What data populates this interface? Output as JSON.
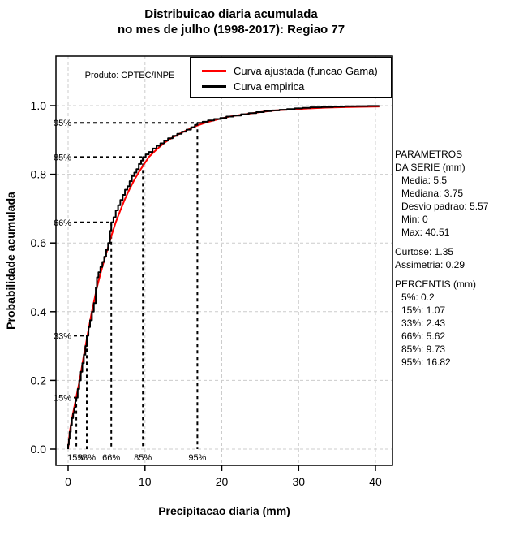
{
  "title": {
    "line1": "Distribuicao diaria acumulada",
    "line2": "no mes de julho (1998-2017): Regiao 77"
  },
  "annotations": {
    "produto": "Produto: CPTEC/INPE"
  },
  "stats_panel": {
    "header_line1": "PARAMETROS",
    "header_line2": "DA SERIE (mm)",
    "series_stats": [
      "Media: 5.5",
      "Mediana: 3.75",
      "Desvio padrao: 5.57",
      "Min: 0",
      "Max: 40.51"
    ],
    "moments": [
      "Curtose: 1.35",
      "Assimetria: 0.29"
    ],
    "percentis_header": "PERCENTIS (mm)",
    "percentis": [
      "5%: 0.2",
      "15%: 1.07",
      "33%: 2.43",
      "66%: 5.62",
      "85%: 9.73",
      "95%: 16.82"
    ]
  },
  "chart_data": {
    "type": "line",
    "title": "Distribuicao diaria acumulada no mes de julho (1998-2017): Regiao 77",
    "xlabel": "Precipitacao diaria (mm)",
    "ylabel": "Probabilidade acumulada",
    "xlim": [
      -1.5,
      42
    ],
    "ylim": [
      -0.02,
      1.04
    ],
    "x_ticks": [
      0,
      10,
      20,
      30,
      40
    ],
    "y_ticks": [
      0.0,
      0.2,
      0.4,
      0.6,
      0.8,
      1.0
    ],
    "grid": true,
    "legend_position": "top-inside",
    "series": [
      {
        "id": "gamma-curve",
        "name": "Curva ajustada (funcao Gama)",
        "color": "#ff0000",
        "step": false,
        "x": [
          0,
          0.2,
          0.5,
          1.07,
          1.5,
          2.0,
          2.43,
          3.0,
          3.75,
          4.2,
          4.7,
          5.2,
          5.62,
          6.2,
          6.8,
          7.4,
          8.0,
          8.6,
          9.2,
          9.73,
          10.5,
          11.5,
          12.5,
          13.5,
          14.5,
          15.5,
          16.82,
          18.0,
          19.5,
          21.0,
          23.0,
          25.0,
          27.0,
          29.0,
          31.0,
          33.5,
          36.0,
          38.0,
          40.5
        ],
        "y": [
          0,
          0.048,
          0.088,
          0.152,
          0.2,
          0.268,
          0.32,
          0.39,
          0.47,
          0.51,
          0.55,
          0.588,
          0.62,
          0.66,
          0.695,
          0.728,
          0.757,
          0.783,
          0.806,
          0.824,
          0.85,
          0.872,
          0.891,
          0.906,
          0.918,
          0.929,
          0.942,
          0.951,
          0.96,
          0.968,
          0.975,
          0.981,
          0.986,
          0.989,
          0.9915,
          0.994,
          0.9955,
          0.9965,
          0.9975
        ]
      },
      {
        "id": "empirical-curve",
        "name": "Curva empirica",
        "color": "#000000",
        "step": true,
        "x": [
          0,
          0,
          0.1,
          0.2,
          0.35,
          0.5,
          0.65,
          0.8,
          0.95,
          1.07,
          1.25,
          1.45,
          1.65,
          1.85,
          2.05,
          2.25,
          2.43,
          2.65,
          2.85,
          3.1,
          3.35,
          3.6,
          3.75,
          3.95,
          4.2,
          4.45,
          4.7,
          4.95,
          5.2,
          5.45,
          5.62,
          5.9,
          6.2,
          6.5,
          6.8,
          7.1,
          7.4,
          7.7,
          8.0,
          8.3,
          8.6,
          8.9,
          9.2,
          9.5,
          9.73,
          10.1,
          10.5,
          11.0,
          11.5,
          12.0,
          12.5,
          13.0,
          13.6,
          14.2,
          14.8,
          15.4,
          16.0,
          16.5,
          16.82,
          17.5,
          18.2,
          19.0,
          19.8,
          20.6,
          21.5,
          22.5,
          23.5,
          24.5,
          25.5,
          26.5,
          27.5,
          28.5,
          29.5,
          30.5,
          31.5,
          33.0,
          34.5,
          36.0,
          37.5,
          39.0,
          40.51
        ],
        "y": [
          0,
          0.013,
          0.03,
          0.05,
          0.07,
          0.09,
          0.105,
          0.12,
          0.14,
          0.15,
          0.175,
          0.2,
          0.225,
          0.25,
          0.275,
          0.3,
          0.33,
          0.355,
          0.375,
          0.4,
          0.425,
          0.47,
          0.5,
          0.515,
          0.53,
          0.545,
          0.56,
          0.58,
          0.6,
          0.635,
          0.66,
          0.675,
          0.695,
          0.71,
          0.725,
          0.74,
          0.755,
          0.765,
          0.78,
          0.795,
          0.805,
          0.815,
          0.83,
          0.84,
          0.85,
          0.858,
          0.865,
          0.875,
          0.883,
          0.89,
          0.898,
          0.905,
          0.912,
          0.918,
          0.924,
          0.93,
          0.937,
          0.944,
          0.95,
          0.953,
          0.957,
          0.961,
          0.964,
          0.968,
          0.971,
          0.975,
          0.978,
          0.981,
          0.984,
          0.986,
          0.988,
          0.99,
          0.992,
          0.9935,
          0.995,
          0.996,
          0.997,
          0.998,
          0.9985,
          0.999,
          1.0
        ]
      }
    ],
    "percentile_guides": [
      {
        "label": "15%",
        "x": 1.07,
        "p": 0.15
      },
      {
        "label": "33%",
        "x": 2.43,
        "p": 0.33
      },
      {
        "label": "66%",
        "x": 5.62,
        "p": 0.66
      },
      {
        "label": "85%",
        "x": 9.73,
        "p": 0.85
      },
      {
        "label": "95%",
        "x": 16.82,
        "p": 0.95
      }
    ]
  }
}
